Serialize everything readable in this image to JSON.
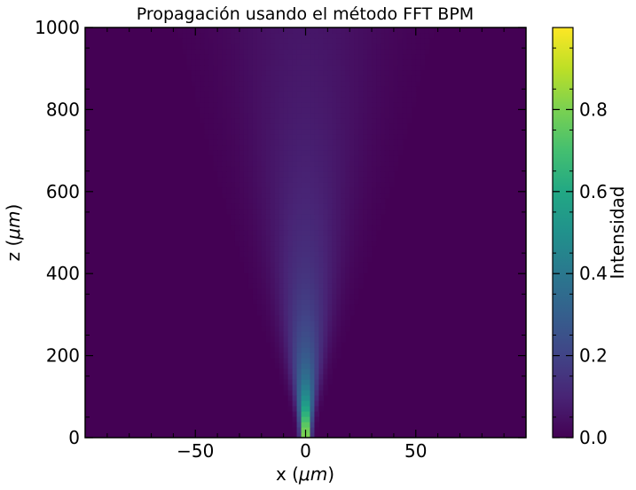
{
  "chart_data": {
    "type": "heatmap",
    "title": "Propagación usando el método FFT BPM",
    "xlabel": "x ($\\mu m$)",
    "xlabel_prefix": "x (",
    "xlabel_mu": "μm",
    "xlabel_suffix": ")",
    "ylabel": "z ($\\mu m$)",
    "ylabel_prefix": "z (",
    "ylabel_mu": "μm",
    "ylabel_suffix": ")",
    "xlim": [
      -100,
      100
    ],
    "ylim": [
      0,
      1000
    ],
    "xticks": [
      -50,
      0,
      50
    ],
    "xtick_labels": [
      "−50",
      "0",
      "50"
    ],
    "yticks": [
      0,
      200,
      400,
      600,
      800,
      1000
    ],
    "ytick_labels": [
      "0",
      "200",
      "400",
      "600",
      "800",
      "1000"
    ],
    "colormap": "viridis",
    "colorbar": {
      "label": "Intensidad",
      "range": [
        0.0,
        1.0
      ],
      "ticks": [
        0.0,
        0.2,
        0.4,
        0.6,
        0.8
      ],
      "tick_labels": [
        "0.0",
        "0.2",
        "0.4",
        "0.6",
        "0.8"
      ]
    },
    "field": {
      "description": "Gaussian beam diverging from waist at z=0, x=0",
      "peak_intensity": 1.0,
      "waist_x_um": 3,
      "beam_width_at_z1000_um": 50,
      "center_x_um": 0
    }
  }
}
